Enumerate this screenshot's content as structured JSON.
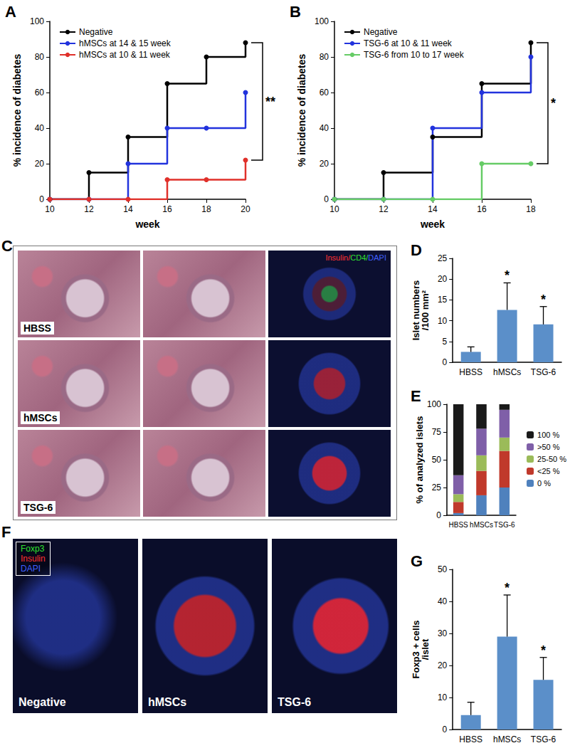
{
  "chart_data": [
    {
      "type": "line",
      "title": "A",
      "x_label": "week",
      "y_label": "% incidence of diabetes",
      "x": [
        10,
        12,
        14,
        16,
        18,
        20
      ],
      "series": [
        {
          "name": "Negative",
          "color": "#000000",
          "values": [
            0,
            15,
            35,
            65,
            80,
            88
          ]
        },
        {
          "name": "hMSCs at 14 & 15 week",
          "color": "#2233dd",
          "values": [
            0,
            0,
            20,
            40,
            40,
            60
          ]
        },
        {
          "name": "hMSCs at 10 & 11 week",
          "color": "#e0302a",
          "values": [
            0,
            0,
            0,
            11,
            11,
            22
          ]
        }
      ],
      "xlim": [
        10,
        20
      ],
      "xticks": [
        10,
        12,
        14,
        16,
        18,
        20
      ],
      "ylim": [
        0,
        100
      ],
      "yticks": [
        0,
        20,
        40,
        60,
        80,
        100
      ],
      "grid": false,
      "legend": "upper left",
      "line_style": "step",
      "marker": "circle",
      "annotations": [
        {
          "text": "**",
          "x": 20,
          "y": [
            88,
            22
          ]
        }
      ]
    },
    {
      "type": "line",
      "title": "B",
      "x_label": "week",
      "y_label": "% incidence of diabetes",
      "x": [
        10,
        12,
        14,
        16,
        18
      ],
      "series": [
        {
          "name": "Negative",
          "color": "#000000",
          "values": [
            0,
            15,
            35,
            65,
            88
          ]
        },
        {
          "name": "TSG-6 at 10 & 11 week",
          "color": "#2233dd",
          "values": [
            0,
            0,
            40,
            60,
            80
          ]
        },
        {
          "name": "TSG-6 from 10 to 17 week",
          "color": "#66cc66",
          "values": [
            0,
            0,
            0,
            20,
            20
          ]
        }
      ],
      "xlim": [
        10,
        18
      ],
      "xticks": [
        10,
        12,
        14,
        16,
        18
      ],
      "ylim": [
        0,
        100
      ],
      "yticks": [
        0,
        20,
        40,
        60,
        80,
        100
      ],
      "grid": false,
      "legend": "upper left",
      "line_style": "step",
      "marker": "circle",
      "annotations": [
        {
          "text": "*",
          "x": 18,
          "y": [
            88,
            20
          ]
        }
      ]
    },
    {
      "type": "bar",
      "title": "D",
      "y_label": "Islet numbers\n/100 mm²",
      "categories": [
        "HBSS",
        "hMSCs",
        "TSG-6"
      ],
      "values": [
        2.5,
        12.6,
        9.1
      ],
      "errors": [
        1.2,
        6.5,
        4.3
      ],
      "marks": [
        null,
        "*",
        "*"
      ],
      "color": "#5b8fc9",
      "ylim": [
        0,
        25
      ],
      "yticks": [
        0,
        5,
        10,
        15,
        20,
        25
      ],
      "grid": false
    },
    {
      "type": "bar",
      "title": "E",
      "y_label": "% of analyzed islets",
      "stacked": true,
      "categories": [
        "HBSS",
        "hMSCs",
        "TSG-6"
      ],
      "series": [
        {
          "name": "0 %",
          "color": "#4f81bd",
          "values": [
            2,
            18,
            25
          ]
        },
        {
          "name": "<25 %",
          "color": "#c0392b",
          "values": [
            10,
            22,
            33
          ]
        },
        {
          "name": "25-50 %",
          "color": "#9bbb59",
          "values": [
            7,
            14,
            12
          ]
        },
        {
          "name": ">50 %",
          "color": "#7f5fa8",
          "values": [
            17,
            24,
            25
          ]
        },
        {
          "name": "100 %",
          "color": "#1a1a1a",
          "values": [
            64,
            22,
            5
          ]
        }
      ],
      "ylim": [
        0,
        100
      ],
      "yticks": [
        0,
        25,
        50,
        75,
        100
      ],
      "grid": false,
      "legend": "right"
    },
    {
      "type": "bar",
      "title": "G",
      "y_label": "Foxp3 + cells\n/islet",
      "categories": [
        "HBSS",
        "hMSCs",
        "TSG-6"
      ],
      "values": [
        4.5,
        29,
        15.5
      ],
      "errors": [
        4,
        13,
        7
      ],
      "marks": [
        null,
        "*",
        "*"
      ],
      "color": "#5b8fc9",
      "ylim": [
        0,
        50
      ],
      "yticks": [
        0,
        10,
        20,
        30,
        40,
        50
      ],
      "grid": false
    }
  ],
  "image_panels": [
    {
      "title": "C",
      "row_labels": [
        "HBSS",
        "hMSCs",
        "TSG-6"
      ],
      "stain_labels": [
        {
          "text": "Insulin/",
          "color": "#ff3030"
        },
        {
          "text": "CD4/",
          "color": "#30e030"
        },
        {
          "text": "DAPI",
          "color": "#4060ff"
        }
      ]
    },
    {
      "title": "F",
      "image_labels": [
        "Negative",
        "hMSCs",
        "TSG-6"
      ],
      "stain_labels": [
        {
          "text": "Foxp3",
          "color": "#30e030"
        },
        {
          "text": "Insulin",
          "color": "#ff3030"
        },
        {
          "text": "DAPI",
          "color": "#4060ff"
        }
      ]
    }
  ]
}
